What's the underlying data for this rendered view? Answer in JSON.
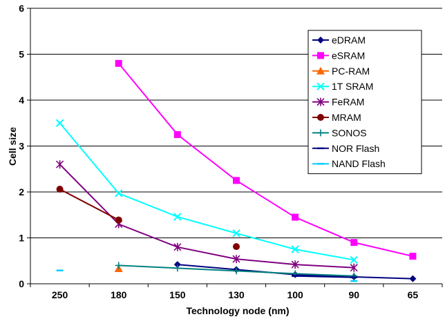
{
  "chart_data": {
    "type": "line",
    "xlabel": "Technology node (nm)",
    "ylabel": "Cell size",
    "categories": [
      "250",
      "180",
      "150",
      "130",
      "100",
      "90",
      "65"
    ],
    "ylim": [
      0,
      6
    ],
    "yticks": [
      "0",
      "1",
      "2",
      "3",
      "4",
      "5",
      "6"
    ],
    "grid": "horizontal",
    "legend_position": "right",
    "series": [
      {
        "name": "eDRAM",
        "color": "#000080",
        "marker": "diamond",
        "values": [
          null,
          null,
          0.42,
          0.31,
          0.2,
          0.15,
          0.11
        ]
      },
      {
        "name": "eSRAM",
        "color": "#FF00FF",
        "marker": "square",
        "values": [
          null,
          4.8,
          3.25,
          2.25,
          1.45,
          0.9,
          0.6
        ]
      },
      {
        "name": "PC-RAM",
        "color": "#FF6600",
        "marker": "triangle",
        "values": [
          null,
          0.33,
          null,
          null,
          null,
          null,
          null
        ]
      },
      {
        "name": "1T SRAM",
        "color": "#00FFFF",
        "marker": "x",
        "values": [
          3.5,
          1.97,
          1.46,
          1.1,
          0.75,
          0.52,
          null
        ]
      },
      {
        "name": "FeRAM",
        "color": "#800080",
        "marker": "star",
        "values": [
          2.6,
          1.3,
          0.8,
          0.54,
          0.42,
          0.35,
          null
        ]
      },
      {
        "name": "MRAM",
        "color": "#800000",
        "marker": "circle",
        "values": [
          2.06,
          1.39,
          null,
          0.81,
          null,
          null,
          null
        ]
      },
      {
        "name": "SONOS",
        "color": "#008080",
        "marker": "plus",
        "values": [
          null,
          0.4,
          0.34,
          0.28,
          0.22,
          0.17,
          null
        ]
      },
      {
        "name": "NOR Flash",
        "color": "#000080",
        "marker": "dash",
        "values": [
          null,
          null,
          null,
          null,
          0.17,
          0.14,
          null
        ]
      },
      {
        "name": "NAND Flash",
        "color": "#00CCFF",
        "marker": "dash",
        "values": [
          0.29,
          null,
          null,
          null,
          null,
          0.06,
          null
        ]
      }
    ]
  }
}
